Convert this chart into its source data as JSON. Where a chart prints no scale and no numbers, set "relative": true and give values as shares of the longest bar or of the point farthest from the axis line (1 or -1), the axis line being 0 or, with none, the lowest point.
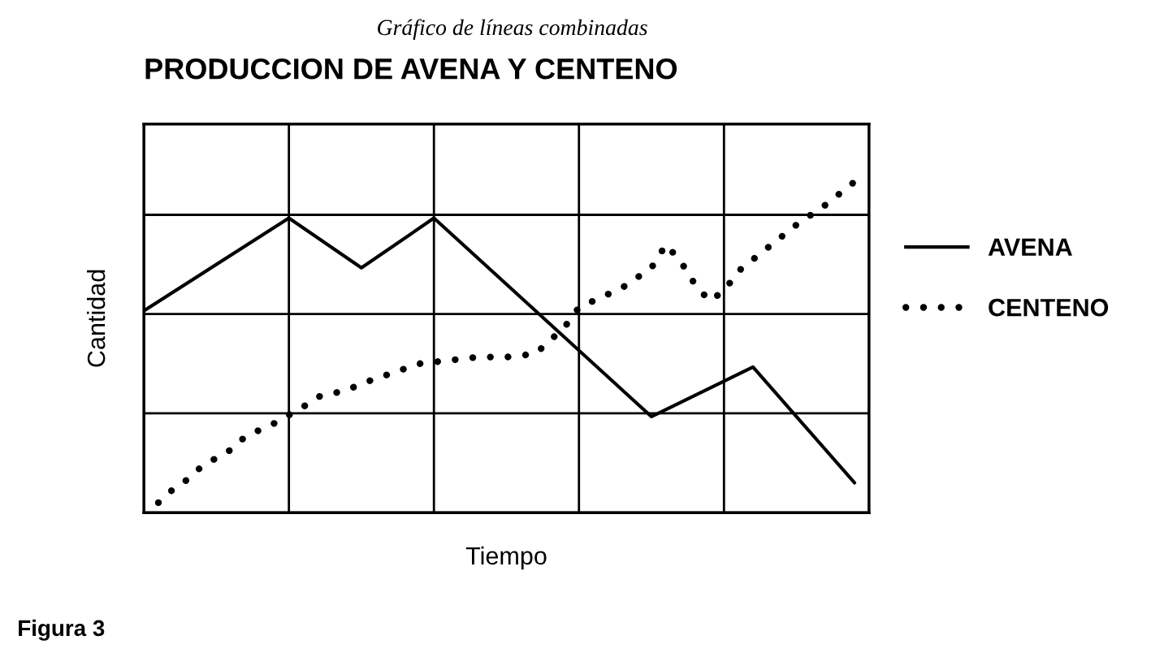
{
  "chart_data": {
    "type": "line",
    "subtitle": "Gráfico de líneas combinadas",
    "title": "PRODUCCION DE AVENA Y CENTENO",
    "xlabel": "Tiempo",
    "ylabel": "Cantidad",
    "annotations": [
      "Figura 3"
    ],
    "relative": true,
    "grid": true,
    "legend": "right",
    "tick_labels": false,
    "categories": [
      null,
      null,
      null,
      null,
      null,
      null,
      null,
      null,
      null,
      null,
      null,
      null,
      null,
      null,
      null,
      null,
      null,
      null,
      null,
      null,
      null,
      null,
      null,
      null,
      null,
      null,
      null,
      null,
      null,
      null,
      null,
      null,
      null,
      null,
      null,
      null,
      null,
      null,
      null,
      null,
      null,
      null,
      null,
      null,
      null,
      null,
      null,
      null,
      null,
      null,
      null
    ],
    "series": [
      {
        "name": "AVENA",
        "line_style": "solid",
        "marker": "none",
        "color": "#000000",
        "values": [
          0.61,
          null,
          null,
          null,
          null,
          null,
          null,
          null,
          null,
          null,
          0.89,
          null,
          null,
          null,
          null,
          0.74,
          null,
          null,
          null,
          null,
          0.89,
          null,
          null,
          null,
          null,
          null,
          null,
          null,
          null,
          null,
          null,
          null,
          null,
          null,
          null,
          0.29,
          null,
          null,
          null,
          null,
          null,
          null,
          0.44,
          null,
          null,
          null,
          null,
          null,
          null,
          0.09,
          null
        ]
      },
      {
        "name": "CENTENO",
        "line_style": "dotted",
        "marker": "none",
        "color": "#000000",
        "values": [
          null,
          0.03,
          0.07,
          0.1,
          0.14,
          null,
          0.19,
          0.23,
          null,
          0.27,
          null,
          0.32,
          0.35,
          null,
          0.37,
          0.39,
          null,
          0.42,
          null,
          0.45,
          null,
          0.46,
          null,
          0.47,
          null,
          0.47,
          null,
          0.48,
          null,
          0.56,
          0.62,
          null,
          null,
          0.68,
          null,
          0.74,
          0.81,
          0.76,
          0.69,
          0.64,
          0.67,
          0.73,
          null,
          0.8,
          null,
          0.87,
          null,
          0.93,
          null,
          1,
          null
        ]
      }
    ]
  }
}
